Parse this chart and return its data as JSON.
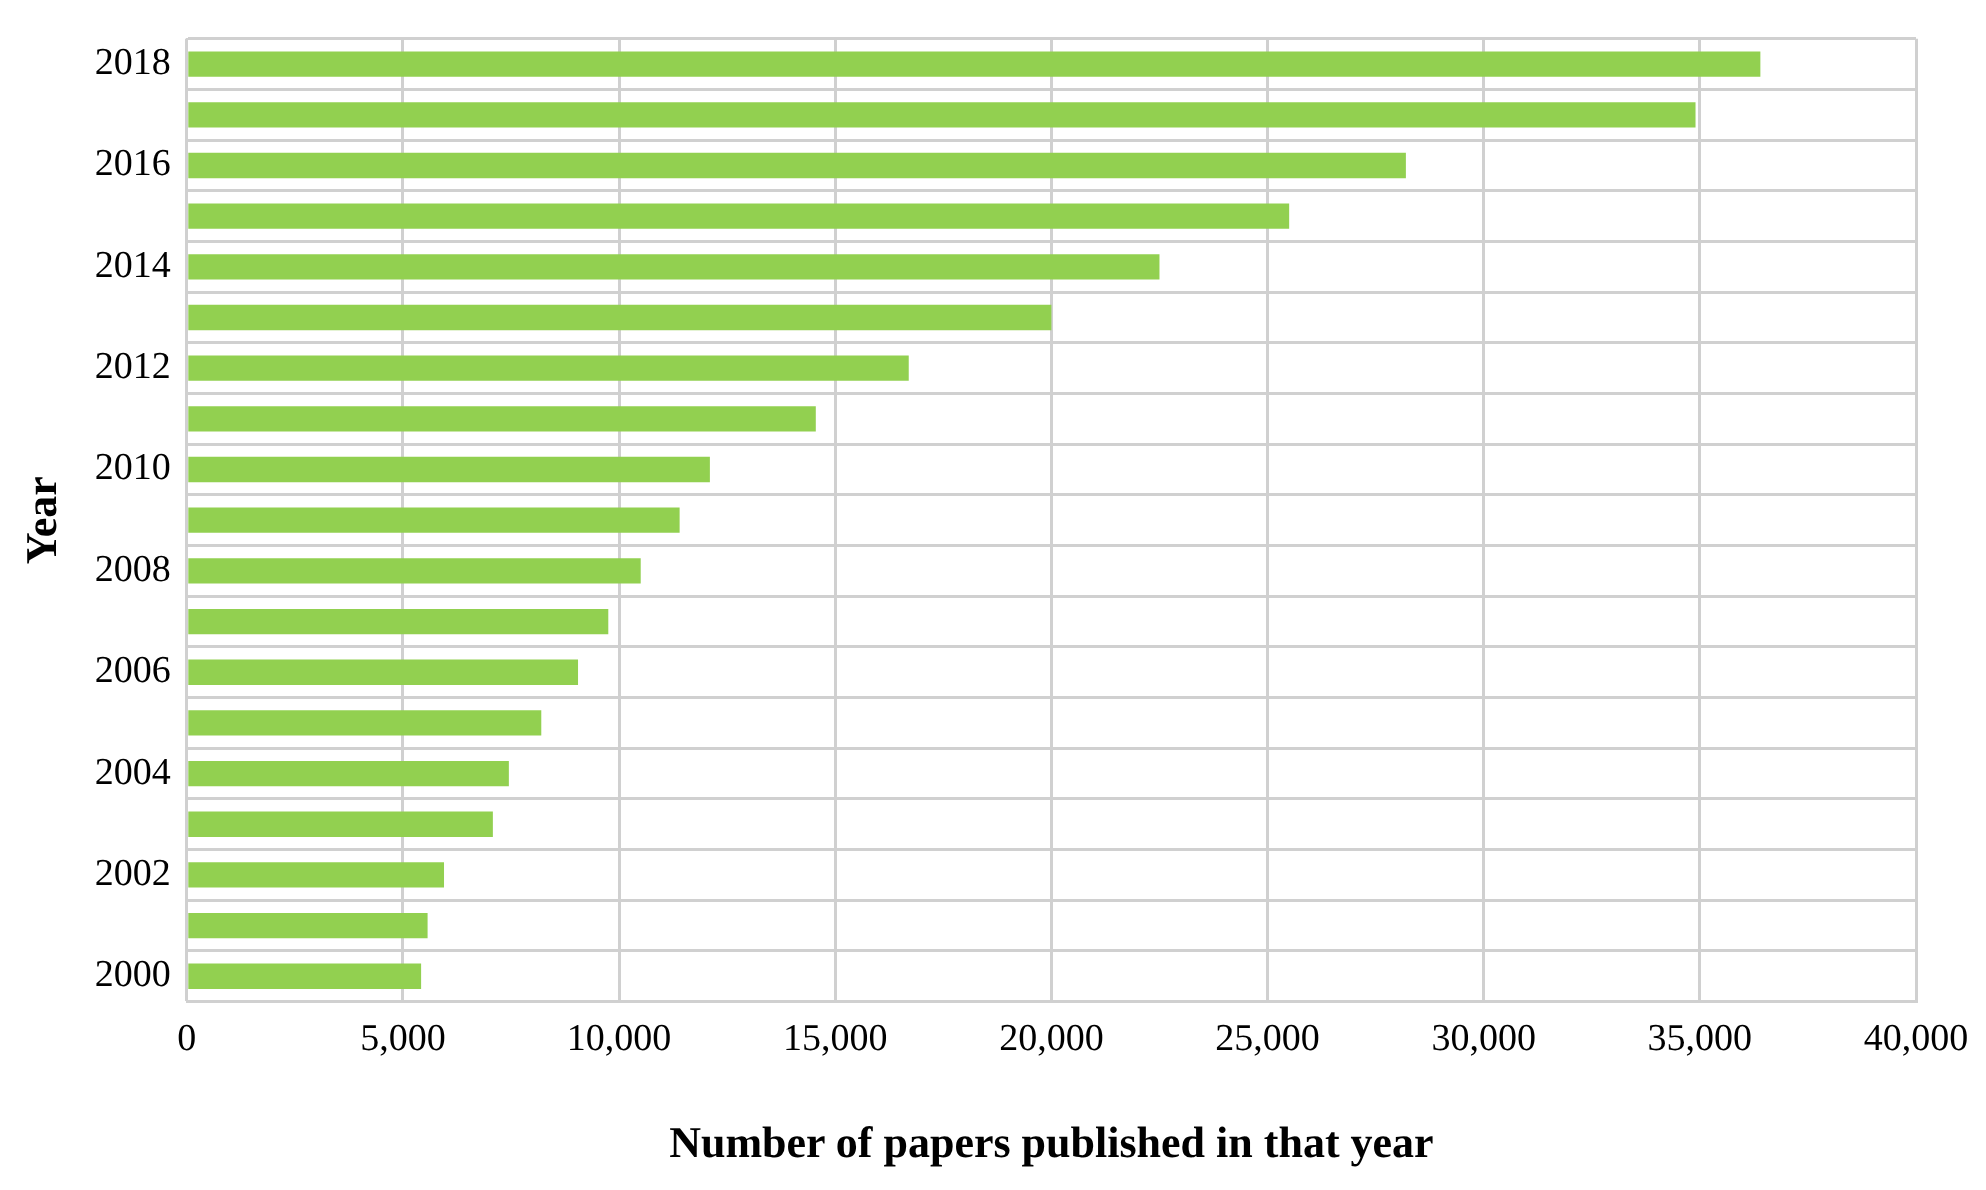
{
  "chart_data": {
    "type": "bar",
    "orientation": "horizontal",
    "xlabel": "Number of papers published in that year",
    "ylabel": "Year",
    "categories": [
      "2018",
      null,
      "2016",
      null,
      "2014",
      null,
      "2012",
      null,
      "2010",
      null,
      "2008",
      null,
      "2006",
      null,
      "2004",
      null,
      "2002",
      null,
      "2000"
    ],
    "values": [
      36400,
      34900,
      28200,
      25500,
      22500,
      20000,
      16700,
      14550,
      12100,
      11400,
      10500,
      9750,
      9050,
      8200,
      7450,
      7080,
      5950,
      5570,
      5420
    ],
    "color": "#92d050",
    "xlim": [
      0,
      40000
    ],
    "xticks": [
      {
        "value": 0,
        "label": "0"
      },
      {
        "value": 5000,
        "label": "5,000"
      },
      {
        "value": 10000,
        "label": "10,000"
      },
      {
        "value": 15000,
        "label": "15,000"
      },
      {
        "value": 20000,
        "label": "20,000"
      },
      {
        "value": 25000,
        "label": "25,000"
      },
      {
        "value": 30000,
        "label": "30,000"
      },
      {
        "value": 35000,
        "label": "35,000"
      },
      {
        "value": 40000,
        "label": "40,000"
      }
    ],
    "grid": true
  }
}
